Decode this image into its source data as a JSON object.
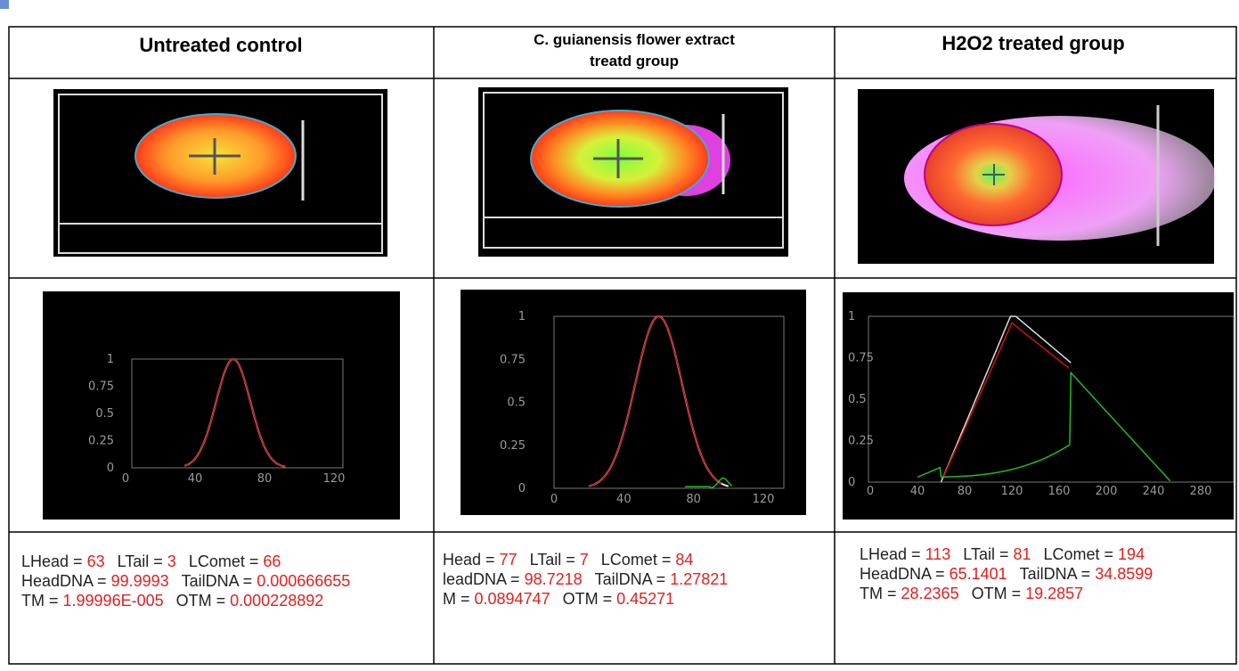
{
  "table": {
    "headers": [
      "Untreated control",
      "C. guianensis flower extract treatd group",
      "H2O2 treated group"
    ],
    "plots": [
      {
        "yticks": [
          "1",
          "0.75",
          "0.5",
          "0.25",
          "0"
        ],
        "xticks": [
          "0",
          "40",
          "80",
          "120"
        ]
      },
      {
        "yticks": [
          "1",
          "0.75",
          "0.5",
          "0.25",
          "0"
        ],
        "xticks": [
          "0",
          "40",
          "80",
          "120"
        ]
      },
      {
        "yticks": [
          "1",
          "0.75",
          "0.5",
          "0.25",
          "0"
        ],
        "xticks": [
          "0",
          "40",
          "80",
          "120",
          "160",
          "200",
          "240",
          "280"
        ]
      }
    ],
    "measurements": [
      [
        [
          [
            "LHead = ",
            "63"
          ],
          [
            "LTail = ",
            "3"
          ],
          [
            "LComet = ",
            "66"
          ]
        ],
        [
          [
            "HeadDNA = ",
            "99.9993"
          ],
          [
            "TailDNA = ",
            "0.000666655"
          ]
        ],
        [
          [
            "TM = ",
            "1.99996E-005"
          ],
          [
            "OTM = ",
            "0.000228892"
          ]
        ]
      ],
      [
        [
          [
            "Head = ",
            "77"
          ],
          [
            "LTail = ",
            "7"
          ],
          [
            "LComet = ",
            "84"
          ]
        ],
        [
          [
            "leadDNA = ",
            "98.7218"
          ],
          [
            "TailDNA = ",
            "1.27821"
          ]
        ],
        [
          [
            "M = ",
            "0.0894747"
          ],
          [
            "OTM = ",
            "0.45271"
          ]
        ]
      ],
      [
        [
          [
            "LHead = ",
            "113"
          ],
          [
            "LTail = ",
            "81"
          ],
          [
            "LComet = ",
            "194"
          ]
        ],
        [
          [
            "HeadDNA = ",
            "65.1401"
          ],
          [
            "TailDNA = ",
            "34.8599"
          ]
        ],
        [
          [
            "TM = ",
            "28.2365"
          ],
          [
            "OTM = ",
            "19.2857"
          ]
        ]
      ]
    ]
  }
}
